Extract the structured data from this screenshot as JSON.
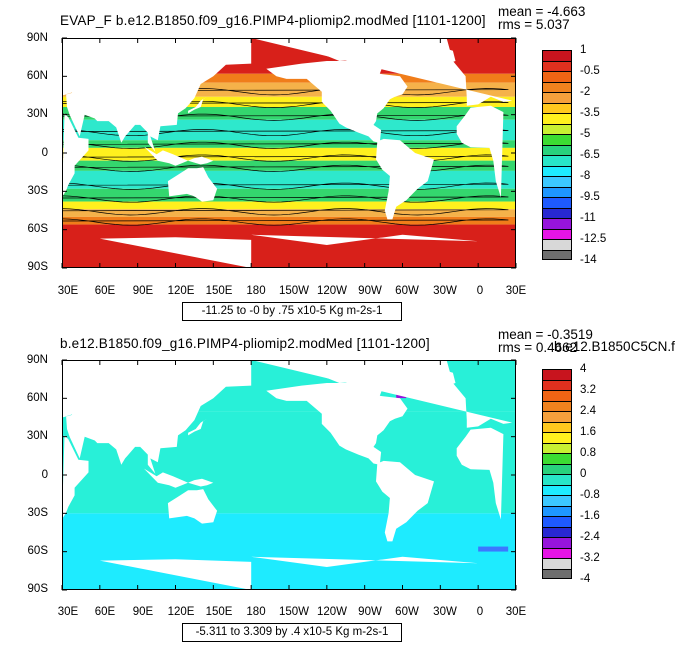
{
  "panels": [
    {
      "id": "top",
      "title": "EVAP_F b.e12.B1850.f09_g16.PIMP4-pliomip2.modMed [1101-1200]",
      "mean_text": "mean = -4.663",
      "rms_text": "rms = 5.037",
      "range_text": "-11.25 to -0 by .75 x10-5 Kg m-2s-1",
      "colorbar_labels": [
        "1",
        "-0.5",
        "-2",
        "-3.5",
        "-5",
        "-6.5",
        "-8",
        "-9.5",
        "-11",
        "-12.5",
        "-14"
      ],
      "colorbar_colors": [
        "#c8141e",
        "#e0301e",
        "#f06414",
        "#f0821e",
        "#f5a03c",
        "#ffc81e",
        "#fff01e",
        "#c8f032",
        "#3cdc32",
        "#28d27d",
        "#28e6c8",
        "#1eebff",
        "#3cc8ff",
        "#1e96ff",
        "#1e5aff",
        "#2828d2",
        "#9614dc",
        "#e614e6",
        "#d8d8d8",
        "#6e6e6e"
      ]
    },
    {
      "id": "bottom",
      "title": "b.e12.B1850.f09_g16.PIMP4-pliomip2.modMed [1101-1200]",
      "mean_text": "mean = -0.3519",
      "rms_text": "rms = 0.4662",
      "overlap_text": "b.e12.B1850C5CN.f",
      "range_text": "-5.311 to 3.309 by .4 x10-5 Kg m-2s-1",
      "colorbar_labels": [
        "4",
        "3.2",
        "2.4",
        "1.6",
        "0.8",
        "0",
        "-0.8",
        "-1.6",
        "-2.4",
        "-3.2",
        "-4"
      ],
      "colorbar_colors": [
        "#c8141e",
        "#e0301e",
        "#f06414",
        "#f0821e",
        "#f5a03c",
        "#ffc81e",
        "#fff01e",
        "#c8f032",
        "#3cdc32",
        "#28d27d",
        "#28e6c8",
        "#1eebff",
        "#3cc8ff",
        "#1e96ff",
        "#1e5aff",
        "#2828d2",
        "#9614dc",
        "#e614e6",
        "#d8d8d8",
        "#6e6e6e"
      ]
    }
  ],
  "lat_labels": [
    "90N",
    "60N",
    "30N",
    "0",
    "30S",
    "60S",
    "90S"
  ],
  "lon_labels": [
    "30E",
    "60E",
    "90E",
    "120E",
    "150E",
    "180",
    "150W",
    "120W",
    "90W",
    "60W",
    "30W",
    "0",
    "30E"
  ],
  "field_colors": {
    "polar": "#d8201a",
    "highlat": "#f07d1a",
    "midlat": "#f5b24a",
    "subtrop": "#fff01e",
    "trop": "#34d66e",
    "core": "#2ee8cc",
    "diff_base": "#28f0d8",
    "diff_neg": "#1eebff",
    "diff_strong": "#3c78ff"
  }
}
